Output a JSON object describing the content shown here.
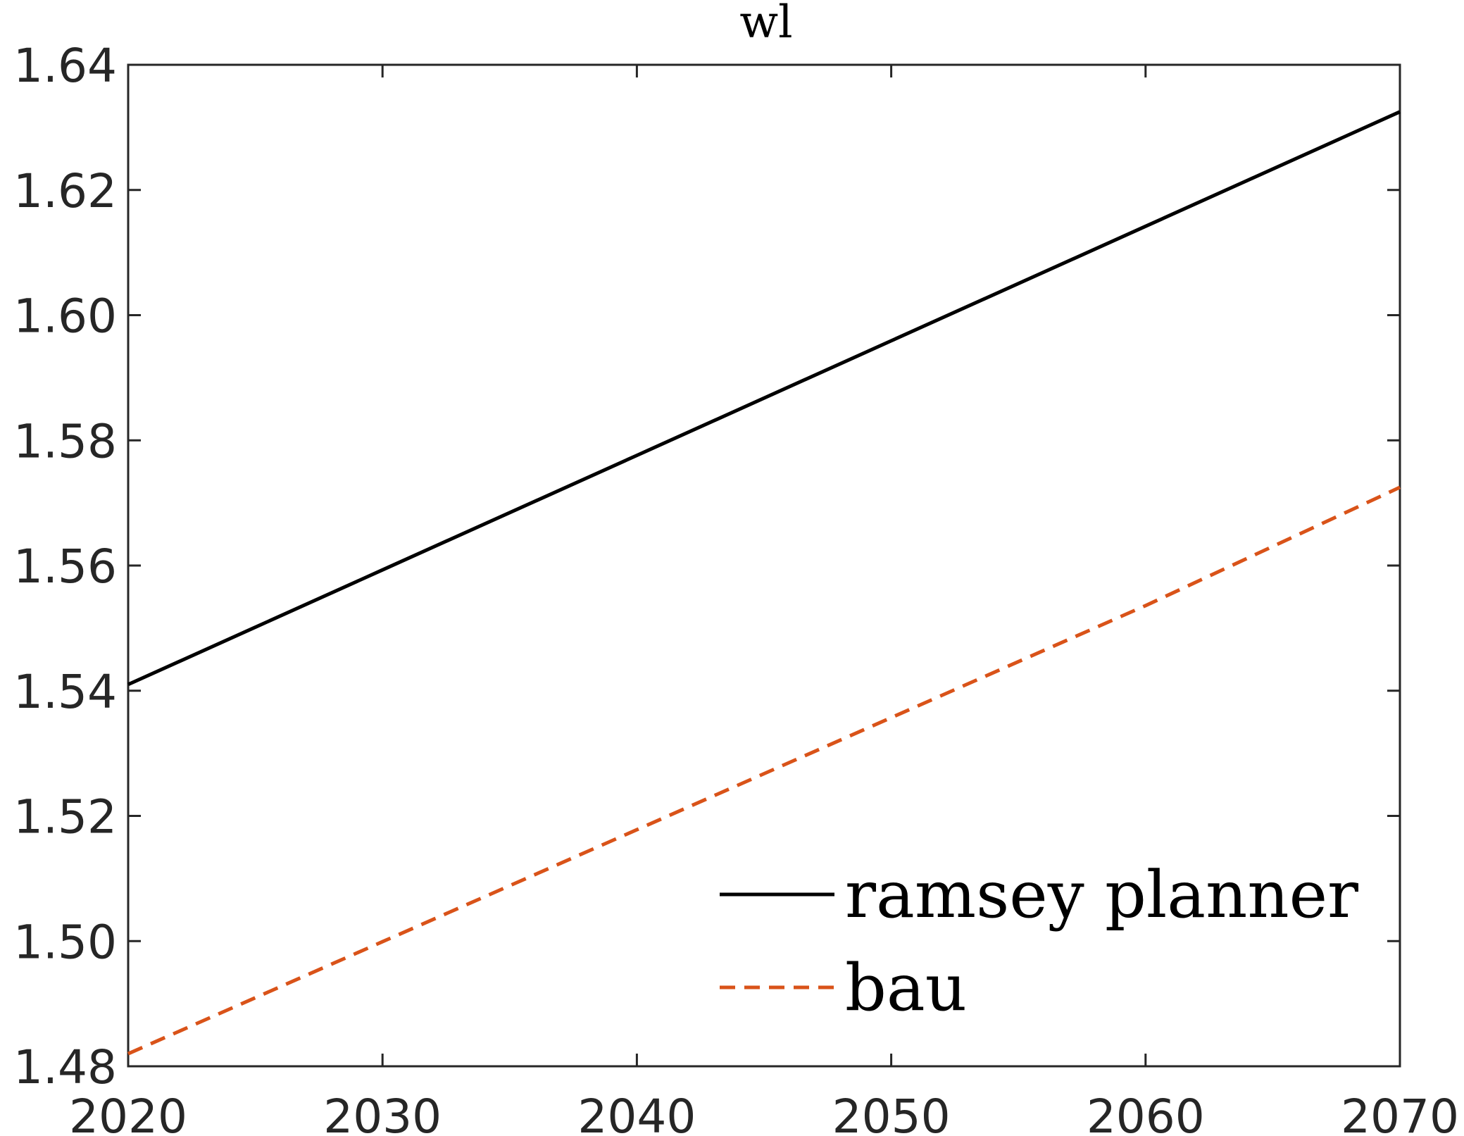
{
  "chart_data": {
    "type": "line",
    "title": "wl",
    "xlabel": "",
    "ylabel": "",
    "xlim": [
      2020,
      2070
    ],
    "ylim": [
      1.48,
      1.64
    ],
    "xticks": [
      "2020",
      "2030",
      "2040",
      "2050",
      "2060",
      "2070"
    ],
    "yticks": [
      "1.48",
      "1.50",
      "1.52",
      "1.54",
      "1.56",
      "1.58",
      "1.60",
      "1.62",
      "1.64"
    ],
    "grid": false,
    "legend_position": "bottom-right",
    "series": [
      {
        "name": "ramsey planner",
        "line_style": "solid",
        "color": "#000000",
        "x": [
          2020,
          2030,
          2040,
          2050,
          2060,
          2070
        ],
        "y": [
          1.541,
          1.5593,
          1.5776,
          1.5959,
          1.6142,
          1.6325
        ]
      },
      {
        "name": "bau",
        "line_style": "dashed",
        "color": "#D95319",
        "x": [
          2020,
          2030,
          2040,
          2050,
          2060,
          2070
        ],
        "y": [
          1.482,
          1.4999,
          1.5178,
          1.5357,
          1.5536,
          1.5725
        ]
      }
    ]
  }
}
